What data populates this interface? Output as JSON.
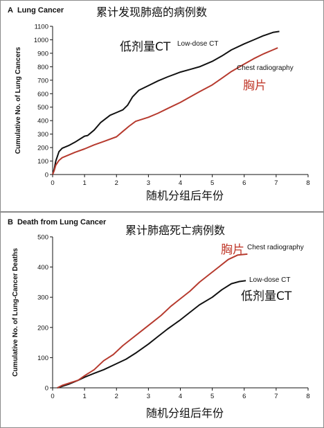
{
  "colors": {
    "low_dose": "#111111",
    "chest": "#b63a2e",
    "cn_red": "#c0392b"
  },
  "chart_data": [
    {
      "type": "line",
      "panel_letter": "A",
      "panel_title": "Lung Cancer",
      "title_cn": "累计发现肺癌的病例数",
      "ylabel": "Cumulative No. of Lung Cancers",
      "xlabel_cn": "随机分组后年份",
      "xlim": [
        0,
        8
      ],
      "ylim": [
        0,
        1100
      ],
      "xticks": [
        "0",
        "1",
        "2",
        "3",
        "4",
        "5",
        "6",
        "7",
        "8"
      ],
      "yticks": [
        "0",
        "100",
        "200",
        "300",
        "400",
        "500",
        "600",
        "700",
        "800",
        "900",
        "1000",
        "1100"
      ],
      "series": [
        {
          "name": "Low-dose CT",
          "name_cn": "低剂量CT",
          "color": "#111111",
          "points": [
            [
              0,
              0
            ],
            [
              0.05,
              40
            ],
            [
              0.1,
              100
            ],
            [
              0.2,
              170
            ],
            [
              0.3,
              195
            ],
            [
              0.5,
              215
            ],
            [
              0.7,
              240
            ],
            [
              0.9,
              270
            ],
            [
              1.0,
              285
            ],
            [
              1.1,
              290
            ],
            [
              1.3,
              330
            ],
            [
              1.5,
              385
            ],
            [
              1.8,
              440
            ],
            [
              2.0,
              460
            ],
            [
              2.2,
              480
            ],
            [
              2.35,
              515
            ],
            [
              2.5,
              575
            ],
            [
              2.7,
              625
            ],
            [
              3.0,
              660
            ],
            [
              3.3,
              695
            ],
            [
              3.6,
              725
            ],
            [
              4.0,
              760
            ],
            [
              4.3,
              780
            ],
            [
              4.6,
              800
            ],
            [
              5.0,
              840
            ],
            [
              5.3,
              880
            ],
            [
              5.6,
              925
            ],
            [
              6.0,
              970
            ],
            [
              6.3,
              1000
            ],
            [
              6.6,
              1030
            ],
            [
              6.9,
              1055
            ],
            [
              7.1,
              1062
            ]
          ]
        },
        {
          "name": "Chest radiography",
          "name_cn": "胸片",
          "color": "#b63a2e",
          "points": [
            [
              0,
              0
            ],
            [
              0.05,
              30
            ],
            [
              0.1,
              70
            ],
            [
              0.2,
              105
            ],
            [
              0.3,
              125
            ],
            [
              0.5,
              145
            ],
            [
              0.7,
              165
            ],
            [
              1.0,
              190
            ],
            [
              1.3,
              220
            ],
            [
              1.6,
              245
            ],
            [
              2.0,
              280
            ],
            [
              2.2,
              320
            ],
            [
              2.4,
              360
            ],
            [
              2.6,
              395
            ],
            [
              3.0,
              425
            ],
            [
              3.3,
              455
            ],
            [
              3.6,
              490
            ],
            [
              4.0,
              535
            ],
            [
              4.3,
              575
            ],
            [
              4.6,
              615
            ],
            [
              5.0,
              665
            ],
            [
              5.3,
              715
            ],
            [
              5.6,
              765
            ],
            [
              6.0,
              820
            ],
            [
              6.3,
              860
            ],
            [
              6.6,
              895
            ],
            [
              6.9,
              925
            ],
            [
              7.05,
              940
            ]
          ]
        }
      ]
    },
    {
      "type": "line",
      "panel_letter": "B",
      "panel_title": "Death from Lung Cancer",
      "title_cn": "累计肺癌死亡病例数",
      "ylabel": "Cumulative No. of Lung-Cancer Deaths",
      "xlabel_cn": "随机分组后年份",
      "xlim": [
        0,
        8
      ],
      "ylim": [
        0,
        500
      ],
      "xticks": [
        "0",
        "1",
        "2",
        "3",
        "4",
        "5",
        "6",
        "7",
        "8"
      ],
      "yticks": [
        "0",
        "100",
        "200",
        "300",
        "400",
        "500"
      ],
      "series": [
        {
          "name": "Low-dose CT",
          "name_cn": "低剂量CT",
          "color": "#111111",
          "points": [
            [
              0.15,
              0
            ],
            [
              0.3,
              5
            ],
            [
              0.5,
              12
            ],
            [
              0.8,
              25
            ],
            [
              1.0,
              35
            ],
            [
              1.3,
              48
            ],
            [
              1.6,
              60
            ],
            [
              2.0,
              80
            ],
            [
              2.3,
              95
            ],
            [
              2.6,
              115
            ],
            [
              3.0,
              145
            ],
            [
              3.3,
              170
            ],
            [
              3.6,
              195
            ],
            [
              4.0,
              225
            ],
            [
              4.3,
              250
            ],
            [
              4.6,
              275
            ],
            [
              5.0,
              300
            ],
            [
              5.3,
              325
            ],
            [
              5.6,
              345
            ],
            [
              5.85,
              352
            ],
            [
              6.05,
              355
            ]
          ]
        },
        {
          "name": "Chest radiography",
          "name_cn": "胸片",
          "color": "#b63a2e",
          "points": [
            [
              0.15,
              0
            ],
            [
              0.3,
              8
            ],
            [
              0.5,
              15
            ],
            [
              0.8,
              25
            ],
            [
              1.0,
              40
            ],
            [
              1.3,
              60
            ],
            [
              1.6,
              90
            ],
            [
              1.9,
              110
            ],
            [
              2.2,
              140
            ],
            [
              2.5,
              165
            ],
            [
              2.8,
              190
            ],
            [
              3.1,
              215
            ],
            [
              3.4,
              240
            ],
            [
              3.7,
              270
            ],
            [
              4.0,
              295
            ],
            [
              4.3,
              320
            ],
            [
              4.6,
              350
            ],
            [
              4.9,
              375
            ],
            [
              5.2,
              400
            ],
            [
              5.5,
              425
            ],
            [
              5.8,
              440
            ],
            [
              6.1,
              443
            ]
          ]
        }
      ]
    }
  ]
}
